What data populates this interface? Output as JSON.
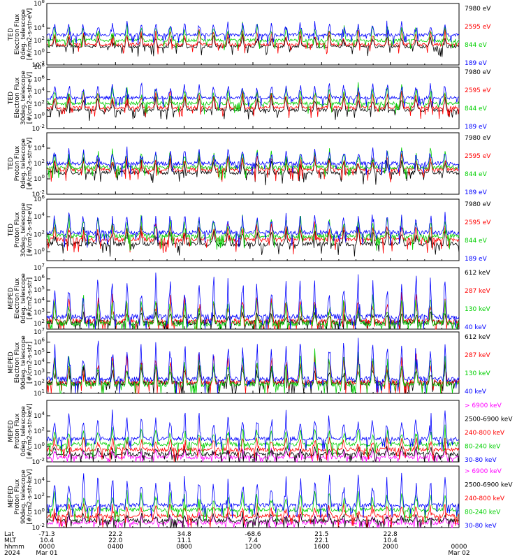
{
  "chart_data": {
    "type": "line",
    "x_range_hours": [
      0,
      24
    ],
    "panels": [
      {
        "ylabel": [
          "TED",
          "Electron Flux",
          "0deg. telescope",
          "[#/cm2-s-str-eV]"
        ],
        "yticks": [
          {
            "label": "10^8",
            "v": 8
          },
          {
            "label": "10^4",
            "v": 4
          },
          {
            "label": "10^2",
            "v": 2
          },
          {
            "label": "10^0",
            "v": 0
          },
          {
            "label": "10^-2",
            "v": -2
          }
        ],
        "ylim": [
          -2,
          8
        ],
        "series": [
          {
            "name": "7980 eV",
            "color": "#000000",
            "base": 1.0,
            "spike": 1.6
          },
          {
            "name": "2595 eV",
            "color": "#ff0000",
            "base": 1.3,
            "spike": 1.9
          },
          {
            "name": "844 eV",
            "color": "#00d000",
            "base": 2.0,
            "spike": 2.2
          },
          {
            "name": "189 eV",
            "color": "#0000ff",
            "base": 2.9,
            "spike": 1.8
          }
        ]
      },
      {
        "ylabel": [
          "TED",
          "Electron Flux",
          "30deg. telescope",
          "[#/cm2-s-str-eV]"
        ],
        "yticks": [
          {
            "label": "10^8",
            "v": 8
          },
          {
            "label": "10^6",
            "v": 6
          },
          {
            "label": "10^4",
            "v": 4
          },
          {
            "label": "10^2",
            "v": 2
          },
          {
            "label": "10^0",
            "v": 0
          },
          {
            "label": "10^-2",
            "v": -2
          }
        ],
        "ylim": [
          -2,
          8
        ],
        "series": [
          {
            "name": "7980 eV",
            "color": "#000000",
            "base": 1.0,
            "spike": 2.0
          },
          {
            "name": "2595 eV",
            "color": "#ff0000",
            "base": 1.4,
            "spike": 2.2
          },
          {
            "name": "844 eV",
            "color": "#00d000",
            "base": 2.1,
            "spike": 2.4
          },
          {
            "name": "189 eV",
            "color": "#0000ff",
            "base": 3.0,
            "spike": 2.0
          }
        ]
      },
      {
        "ylabel": [
          "TED",
          "Proton Flux",
          "0deg. telescope",
          "[#/cm2-s-str-eV]"
        ],
        "yticks": [
          {
            "label": "10^4",
            "v": 4
          },
          {
            "label": "10^2",
            "v": 2
          },
          {
            "label": "10^0",
            "v": 0
          },
          {
            "label": "10^-2",
            "v": -2
          }
        ],
        "ylim": [
          -2,
          6
        ],
        "series": [
          {
            "name": "7980 eV",
            "color": "#000000",
            "base": 0.8,
            "spike": 1.6
          },
          {
            "name": "2595 eV",
            "color": "#ff0000",
            "base": 1.2,
            "spike": 1.5
          },
          {
            "name": "844 eV",
            "color": "#00d000",
            "base": 1.5,
            "spike": 2.0
          },
          {
            "name": "189 eV",
            "color": "#0000ff",
            "base": 2.0,
            "spike": 1.6
          }
        ]
      },
      {
        "ylabel": [
          "TED",
          "Proton Flux",
          "30deg. telescope",
          "[#/cm2-s-str-eV]"
        ],
        "yticks": [
          {
            "label": "10^6",
            "v": 6
          },
          {
            "label": "10^4",
            "v": 4
          },
          {
            "label": "10^2",
            "v": 2
          },
          {
            "label": "10^0",
            "v": 0
          }
        ],
        "ylim": [
          -1,
          6
        ],
        "series": [
          {
            "name": "7980 eV",
            "color": "#000000",
            "base": 0.9,
            "spike": 1.5
          },
          {
            "name": "2595 eV",
            "color": "#ff0000",
            "base": 1.4,
            "spike": 1.5
          },
          {
            "name": "844 eV",
            "color": "#00d000",
            "base": 1.8,
            "spike": 1.8
          },
          {
            "name": "189 eV",
            "color": "#0000ff",
            "base": 2.2,
            "spike": 1.8
          }
        ]
      },
      {
        "ylabel": [
          "MEPED",
          "Electron Flux",
          "0deg. telescope",
          "[#/cm2-s-str]"
        ],
        "yticks": [
          {
            "label": "10^7",
            "v": 7
          },
          {
            "label": "10^6",
            "v": 6
          },
          {
            "label": "10^5",
            "v": 5
          },
          {
            "label": "10^4",
            "v": 4
          },
          {
            "label": "10^3",
            "v": 3
          },
          {
            "label": "10^2",
            "v": 2
          }
        ],
        "ylim": [
          1.5,
          7
        ],
        "series": [
          {
            "name": "612 keV",
            "color": "#000000",
            "base": 2.1,
            "spike": 0.8
          },
          {
            "name": "287 keV",
            "color": "#ff0000",
            "base": 2.2,
            "spike": 1.8
          },
          {
            "name": "130 keV",
            "color": "#00d000",
            "base": 2.0,
            "spike": 2.0
          },
          {
            "name": "40 keV",
            "color": "#0000ff",
            "base": 2.6,
            "spike": 3.0
          }
        ]
      },
      {
        "ylabel": [
          "MEPED",
          "Electron Flux",
          "90deg. telescope",
          "[#/cm2-s-str]"
        ],
        "yticks": [
          {
            "label": "10^7",
            "v": 7
          },
          {
            "label": "10^6",
            "v": 6
          },
          {
            "label": "10^5",
            "v": 5
          },
          {
            "label": "10^4",
            "v": 4
          },
          {
            "label": "10^3",
            "v": 3
          },
          {
            "label": "10^2",
            "v": 2
          },
          {
            "label": "10^1",
            "v": 1
          }
        ],
        "ylim": [
          1,
          7
        ],
        "series": [
          {
            "name": "612 keV",
            "color": "#000000",
            "base": 2.0,
            "spike": 1.5
          },
          {
            "name": "287 keV",
            "color": "#ff0000",
            "base": 2.1,
            "spike": 2.2
          },
          {
            "name": "130 keV",
            "color": "#00d000",
            "base": 1.9,
            "spike": 2.5
          },
          {
            "name": "40 keV",
            "color": "#0000ff",
            "base": 2.4,
            "spike": 3.2
          }
        ]
      },
      {
        "ylabel": [
          "MEPED",
          "Proton Flux",
          "0deg. telescope",
          "[#/cm2-s-str-keV]"
        ],
        "yticks": [
          {
            "label": "10^4",
            "v": 4
          },
          {
            "label": "10^2",
            "v": 2
          },
          {
            "label": "10^0",
            "v": 0
          },
          {
            "label": "10^-2",
            "v": -2
          }
        ],
        "ylim": [
          -2,
          6
        ],
        "series": [
          {
            "name": "> 6900 keV",
            "color": "#ff00ff",
            "base": -1.4,
            "spike": 0.9
          },
          {
            "name": "2500-6900 keV",
            "color": "#000000",
            "base": -1.0,
            "spike": 0.8
          },
          {
            "name": "240-800 keV",
            "color": "#ff0000",
            "base": -0.4,
            "spike": 1.3
          },
          {
            "name": "80-240 keV",
            "color": "#00d000",
            "base": 0.3,
            "spike": 1.8
          },
          {
            "name": "30-80 keV",
            "color": "#0000ff",
            "base": 1.0,
            "spike": 3.0
          }
        ]
      },
      {
        "ylabel": [
          "MEPED",
          "Proton Flux",
          "90deg. telescope",
          "[#/cm2-s-str-keV]"
        ],
        "yticks": [
          {
            "label": "10^4",
            "v": 4
          },
          {
            "label": "10^2",
            "v": 2
          },
          {
            "label": "10^0",
            "v": 0
          },
          {
            "label": "10^-2",
            "v": -2
          }
        ],
        "ylim": [
          -2,
          6
        ],
        "series": [
          {
            "name": "> 6900 keV",
            "color": "#ff00ff",
            "base": -1.4,
            "spike": 0.9
          },
          {
            "name": "2500-6900 keV",
            "color": "#000000",
            "base": -1.1,
            "spike": 0.8
          },
          {
            "name": "240-800 keV",
            "color": "#ff0000",
            "base": -0.5,
            "spike": 1.4
          },
          {
            "name": "80-240 keV",
            "color": "#00d000",
            "base": 0.3,
            "spike": 2.0
          },
          {
            "name": "30-80 keV",
            "color": "#0000ff",
            "base": 0.9,
            "spike": 3.2
          }
        ]
      }
    ],
    "x_axis": {
      "row_labels": [
        "Lat",
        "MLT",
        "hhmm",
        "2024"
      ],
      "ticks": [
        {
          "hour": 0,
          "lat": "-71.3",
          "mlt": "10.4",
          "hhmm": "0000",
          "date": "Mar 01"
        },
        {
          "hour": 4,
          "lat": "22.2",
          "mlt": "22.0",
          "hhmm": "0400",
          "date": ""
        },
        {
          "hour": 8,
          "lat": "34.8",
          "mlt": "11.1",
          "hhmm": "0800",
          "date": ""
        },
        {
          "hour": 12,
          "lat": "-68.6",
          "mlt": "7.4",
          "hhmm": "1200",
          "date": ""
        },
        {
          "hour": 16,
          "lat": "21.5",
          "mlt": "22.1",
          "hhmm": "1600",
          "date": ""
        },
        {
          "hour": 20,
          "lat": "22.8",
          "mlt": "10.4",
          "hhmm": "2000",
          "date": ""
        },
        {
          "hour": 24,
          "lat": "",
          "mlt": "",
          "hhmm": "0000",
          "date": "Mar 02"
        }
      ]
    }
  }
}
